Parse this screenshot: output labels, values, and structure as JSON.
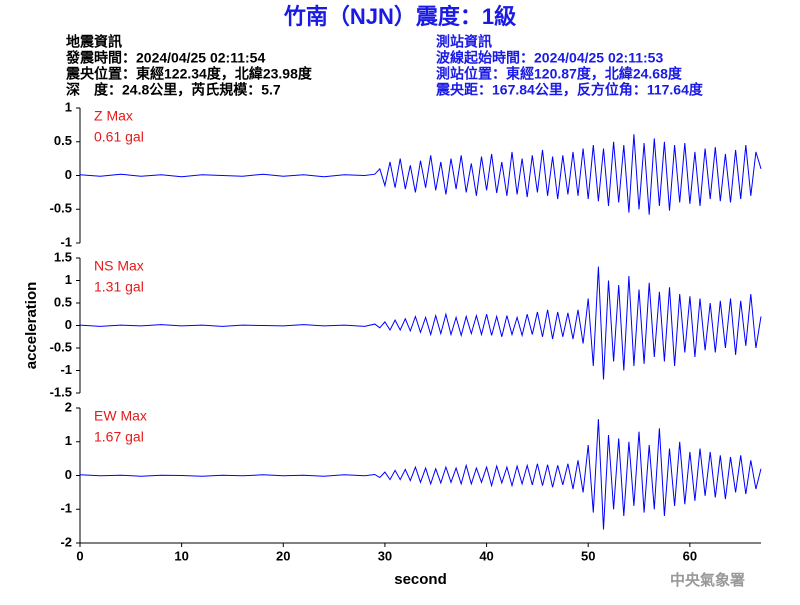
{
  "header": {
    "title": "竹南（NJN）震度：1級",
    "left": [
      "地震資訊",
      "發震時間：2024/04/25 02:11:54",
      "震央位置：東經122.34度，北緯23.98度",
      "深　度：24.8公里，芮氏規模：5.7"
    ],
    "right": [
      "測站資訊",
      "波線起始時間：2024/04/25 02:11:53",
      "測站位置：東經120.87度，北緯24.68度",
      "震央距：167.84公里，反方位角：117.64度"
    ]
  },
  "footer": "中央氣象署",
  "chart_data": [
    {
      "type": "line",
      "annotations": [
        "Z Max",
        "0.61 gal"
      ],
      "xlim": [
        0,
        67
      ],
      "ylim": [
        -1,
        1
      ],
      "yticks": [
        -1,
        -0.5,
        0,
        0.5,
        1
      ],
      "x": [
        0,
        2,
        4,
        6,
        8,
        10,
        12,
        14,
        16,
        18,
        20,
        22,
        24,
        26,
        28,
        29,
        29.5,
        30,
        30.5,
        31,
        31.5,
        32,
        32.5,
        33,
        33.5,
        34,
        34.5,
        35,
        35.5,
        36,
        36.5,
        37,
        37.5,
        38,
        38.5,
        39,
        39.5,
        40,
        40.5,
        41,
        41.5,
        42,
        42.5,
        43,
        43.5,
        44,
        44.5,
        45,
        45.5,
        46,
        46.5,
        47,
        47.5,
        48,
        48.5,
        49,
        49.5,
        50,
        50.5,
        51,
        51.5,
        52,
        52.5,
        53,
        53.5,
        54,
        54.5,
        55,
        55.5,
        56,
        56.5,
        57,
        57.5,
        58,
        58.5,
        59,
        59.5,
        60,
        60.5,
        61,
        61.5,
        62,
        62.5,
        63,
        63.5,
        64,
        64.5,
        65,
        65.5,
        66,
        66.5,
        67
      ],
      "series": [
        {
          "color": "#0000ff",
          "values": [
            0.01,
            -0.01,
            0.02,
            -0.01,
            0.01,
            -0.02,
            0.01,
            0,
            -0.01,
            0.02,
            -0.01,
            0.01,
            -0.02,
            0.01,
            0,
            0.02,
            0.1,
            -0.15,
            0.2,
            -0.18,
            0.25,
            -0.2,
            0.15,
            -0.25,
            0.22,
            -0.18,
            0.3,
            -0.22,
            0.2,
            -0.28,
            0.25,
            -0.2,
            0.3,
            -0.25,
            0.18,
            -0.3,
            0.28,
            -0.22,
            0.32,
            -0.26,
            0.2,
            -0.3,
            0.35,
            -0.28,
            0.25,
            -0.32,
            0.3,
            -0.25,
            0.38,
            -0.3,
            0.28,
            -0.35,
            0.3,
            -0.28,
            0.35,
            -0.3,
            0.4,
            -0.35,
            0.45,
            -0.38,
            0.4,
            -0.45,
            0.5,
            -0.4,
            0.45,
            -0.55,
            0.61,
            -0.5,
            0.48,
            -0.58,
            0.55,
            -0.45,
            0.5,
            -0.52,
            0.45,
            -0.4,
            0.48,
            -0.42,
            0.35,
            -0.45,
            0.4,
            -0.35,
            0.42,
            -0.38,
            0.32,
            -0.4,
            0.38,
            -0.35,
            0.45,
            -0.3,
            0.35,
            0.1
          ]
        }
      ]
    },
    {
      "type": "line",
      "annotations": [
        "NS Max",
        "1.31 gal"
      ],
      "ylabel": "acceleration",
      "xlim": [
        0,
        67
      ],
      "ylim": [
        -1.5,
        1.5
      ],
      "yticks": [
        -1.5,
        -1,
        -0.5,
        0,
        0.5,
        1,
        1.5
      ],
      "x": [
        0,
        2,
        4,
        6,
        8,
        10,
        12,
        14,
        16,
        18,
        20,
        22,
        24,
        26,
        28,
        29,
        29.5,
        30,
        30.5,
        31,
        31.5,
        32,
        32.5,
        33,
        33.5,
        34,
        34.5,
        35,
        35.5,
        36,
        36.5,
        37,
        37.5,
        38,
        38.5,
        39,
        39.5,
        40,
        40.5,
        41,
        41.5,
        42,
        42.5,
        43,
        43.5,
        44,
        44.5,
        45,
        45.5,
        46,
        46.5,
        47,
        47.5,
        48,
        48.5,
        49,
        49.5,
        50,
        50.5,
        51,
        51.5,
        52,
        52.5,
        53,
        53.5,
        54,
        54.5,
        55,
        55.5,
        56,
        56.5,
        57,
        57.5,
        58,
        58.5,
        59,
        59.5,
        60,
        60.5,
        61,
        61.5,
        62,
        62.5,
        63,
        63.5,
        64,
        64.5,
        65,
        65.5,
        66,
        66.5,
        67
      ],
      "series": [
        {
          "color": "#0000ff",
          "values": [
            0.01,
            -0.02,
            0.01,
            -0.01,
            0.02,
            -0.01,
            0.01,
            -0.02,
            0.01,
            0,
            -0.01,
            0.02,
            -0.01,
            0.01,
            -0.02,
            0.03,
            -0.05,
            0.08,
            -0.1,
            0.12,
            -0.1,
            0.15,
            -0.12,
            0.2,
            -0.15,
            0.18,
            -0.2,
            0.22,
            -0.18,
            0.25,
            -0.2,
            0.18,
            -0.22,
            0.2,
            -0.18,
            0.22,
            -0.2,
            0.25,
            -0.22,
            0.2,
            -0.25,
            0.22,
            -0.2,
            0.18,
            -0.22,
            0.25,
            -0.2,
            0.3,
            -0.25,
            0.35,
            -0.3,
            0.3,
            -0.25,
            0.28,
            -0.3,
            0.35,
            -0.4,
            0.6,
            -0.9,
            1.31,
            -1.2,
            1.0,
            -0.8,
            0.9,
            -1.0,
            1.1,
            -0.9,
            0.8,
            -0.85,
            0.95,
            -0.7,
            0.75,
            -0.8,
            0.85,
            -0.9,
            0.7,
            -0.6,
            0.65,
            -0.7,
            0.6,
            -0.55,
            0.5,
            -0.6,
            0.55,
            -0.5,
            0.6,
            -0.65,
            0.55,
            -0.45,
            0.7,
            -0.5,
            0.2
          ]
        }
      ]
    },
    {
      "type": "line",
      "annotations": [
        "EW Max",
        "1.67 gal"
      ],
      "xlabel": "second",
      "xlim": [
        0,
        67
      ],
      "xticks": [
        0,
        10,
        20,
        30,
        40,
        50,
        60
      ],
      "ylim": [
        -2,
        2
      ],
      "yticks": [
        -2,
        -1,
        0,
        1,
        2
      ],
      "x": [
        0,
        2,
        4,
        6,
        8,
        10,
        12,
        14,
        16,
        18,
        20,
        22,
        24,
        26,
        28,
        29,
        29.5,
        30,
        30.5,
        31,
        31.5,
        32,
        32.5,
        33,
        33.5,
        34,
        34.5,
        35,
        35.5,
        36,
        36.5,
        37,
        37.5,
        38,
        38.5,
        39,
        39.5,
        40,
        40.5,
        41,
        41.5,
        42,
        42.5,
        43,
        43.5,
        44,
        44.5,
        45,
        45.5,
        46,
        46.5,
        47,
        47.5,
        48,
        48.5,
        49,
        49.5,
        50,
        50.5,
        51,
        51.5,
        52,
        52.5,
        53,
        53.5,
        54,
        54.5,
        55,
        55.5,
        56,
        56.5,
        57,
        57.5,
        58,
        58.5,
        59,
        59.5,
        60,
        60.5,
        61,
        61.5,
        62,
        62.5,
        63,
        63.5,
        64,
        64.5,
        65,
        65.5,
        66,
        66.5,
        67
      ],
      "series": [
        {
          "color": "#0000ff",
          "values": [
            0.02,
            -0.01,
            0.01,
            -0.02,
            0.01,
            0,
            -0.02,
            0.01,
            -0.01,
            0.02,
            -0.01,
            0.01,
            -0.02,
            0.02,
            -0.01,
            0.03,
            -0.06,
            0.1,
            -0.12,
            0.15,
            -0.12,
            0.18,
            -0.15,
            0.25,
            -0.2,
            0.22,
            -0.25,
            0.2,
            -0.22,
            0.25,
            -0.2,
            0.22,
            -0.25,
            0.3,
            -0.25,
            0.22,
            -0.2,
            0.25,
            -0.3,
            0.28,
            -0.22,
            0.25,
            -0.3,
            0.28,
            -0.25,
            0.3,
            -0.28,
            0.35,
            -0.3,
            0.32,
            -0.35,
            0.3,
            -0.28,
            0.35,
            -0.4,
            0.45,
            -0.5,
            0.9,
            -1.1,
            1.67,
            -1.6,
            1.2,
            -1.0,
            1.1,
            -1.2,
            1.0,
            -0.9,
            1.3,
            -1.1,
            0.9,
            -1.0,
            1.4,
            -1.2,
            0.8,
            -0.9,
            1.0,
            -0.85,
            0.7,
            -0.75,
            0.8,
            -0.6,
            0.7,
            -0.65,
            0.6,
            -0.7,
            0.55,
            -0.5,
            0.6,
            -0.55,
            0.45,
            -0.4,
            0.2
          ]
        }
      ]
    }
  ]
}
